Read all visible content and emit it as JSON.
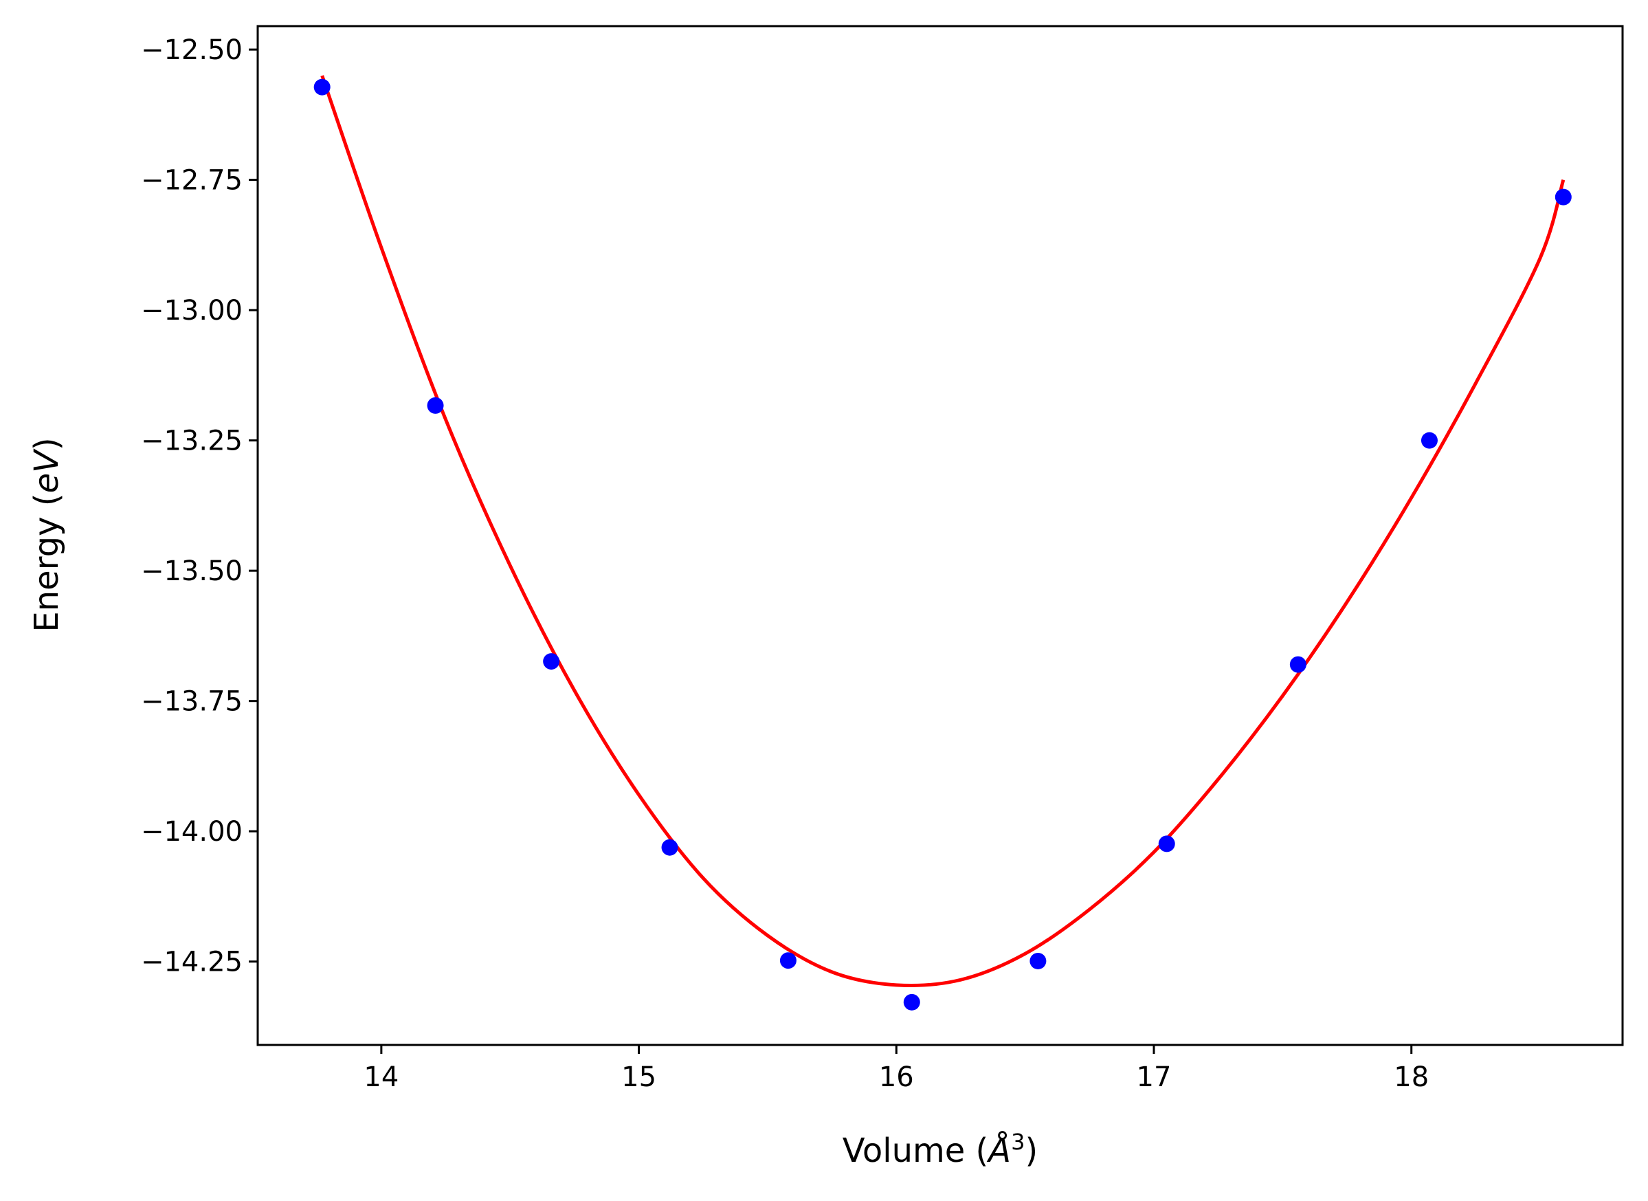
{
  "chart_data": {
    "type": "scatter",
    "title": "",
    "xlabel_parts": [
      "Volume (",
      "Å",
      "3",
      ")"
    ],
    "ylabel_parts": [
      "Energy (",
      "eV",
      ")"
    ],
    "xlim": [
      13.52,
      18.82
    ],
    "ylim": [
      -14.41,
      -12.455
    ],
    "xticks": [
      14,
      15,
      16,
      17,
      18
    ],
    "xtick_labels": [
      "14",
      "15",
      "16",
      "17",
      "18"
    ],
    "yticks": [
      -12.5,
      -12.75,
      -13.0,
      -13.25,
      -13.5,
      -13.75,
      -14.0,
      -14.25
    ],
    "ytick_labels": [
      "−12.50",
      "−12.75",
      "−13.00",
      "−13.25",
      "−13.50",
      "−13.75",
      "−14.00",
      "−14.25"
    ],
    "grid": false,
    "legend": "none",
    "series": [
      {
        "kind": "points",
        "color": "#0000ff",
        "x": [
          13.77,
          14.21,
          14.66,
          15.12,
          15.58,
          16.06,
          16.55,
          17.05,
          17.56,
          18.07,
          18.59
        ],
        "y": [
          -12.572,
          -13.183,
          -13.674,
          -14.031,
          -14.248,
          -14.328,
          -14.249,
          -14.024,
          -13.68,
          -13.25,
          -12.783
        ]
      },
      {
        "kind": "fit-curve",
        "color": "#ff0000",
        "x": [
          13.77,
          14.0,
          14.25,
          14.5,
          14.75,
          15.0,
          15.25,
          15.5,
          15.75,
          16.0,
          16.25,
          16.5,
          16.75,
          17.0,
          17.25,
          17.5,
          17.75,
          18.0,
          18.25,
          18.5,
          18.59
        ],
        "y": [
          -12.55,
          -12.88,
          -13.21,
          -13.49,
          -13.73,
          -13.93,
          -14.09,
          -14.2,
          -14.27,
          -14.295,
          -14.285,
          -14.235,
          -14.15,
          -14.04,
          -13.9,
          -13.74,
          -13.56,
          -13.36,
          -13.14,
          -12.9,
          -12.75
        ]
      }
    ]
  }
}
